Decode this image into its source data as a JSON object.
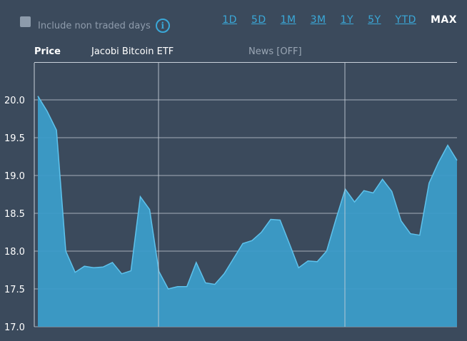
{
  "toggle": {
    "label": "Include non traded days",
    "checked": false
  },
  "ranges": [
    {
      "label": "1D",
      "active": false
    },
    {
      "label": "5D",
      "active": false
    },
    {
      "label": "1M",
      "active": false
    },
    {
      "label": "3M",
      "active": false
    },
    {
      "label": "1Y",
      "active": false
    },
    {
      "label": "5Y",
      "active": false
    },
    {
      "label": "YTD",
      "active": false
    },
    {
      "label": "MAX",
      "active": true
    }
  ],
  "header": {
    "price_label": "Price",
    "fund_name": "Jacobi Bitcoin ETF",
    "news_label": "News [OFF]"
  },
  "colors": {
    "background": "#3b4a5c",
    "area_fill": "#3b9cc8",
    "area_line": "#5ec2ec",
    "accent": "#3aa8d8",
    "gridline": "#c9d1da"
  },
  "chart_data": {
    "type": "area",
    "ylim": [
      17.0,
      20.0
    ],
    "yticks": [
      "20.0",
      "19.5",
      "19.0",
      "18.5",
      "18.0",
      "17.5",
      "17.0"
    ],
    "grid": true,
    "values": [
      20.05,
      19.85,
      19.6,
      18.0,
      17.72,
      17.8,
      17.78,
      17.79,
      17.85,
      17.7,
      17.74,
      18.72,
      18.55,
      17.73,
      17.5,
      17.53,
      17.53,
      17.85,
      17.58,
      17.56,
      17.7,
      17.9,
      18.1,
      18.14,
      18.25,
      18.42,
      18.41,
      18.1,
      17.78,
      17.87,
      17.86,
      18.0,
      18.42,
      18.82,
      18.65,
      18.8,
      18.77,
      18.95,
      18.79,
      18.4,
      18.23,
      18.21,
      18.9,
      19.17,
      19.4,
      19.2
    ]
  }
}
